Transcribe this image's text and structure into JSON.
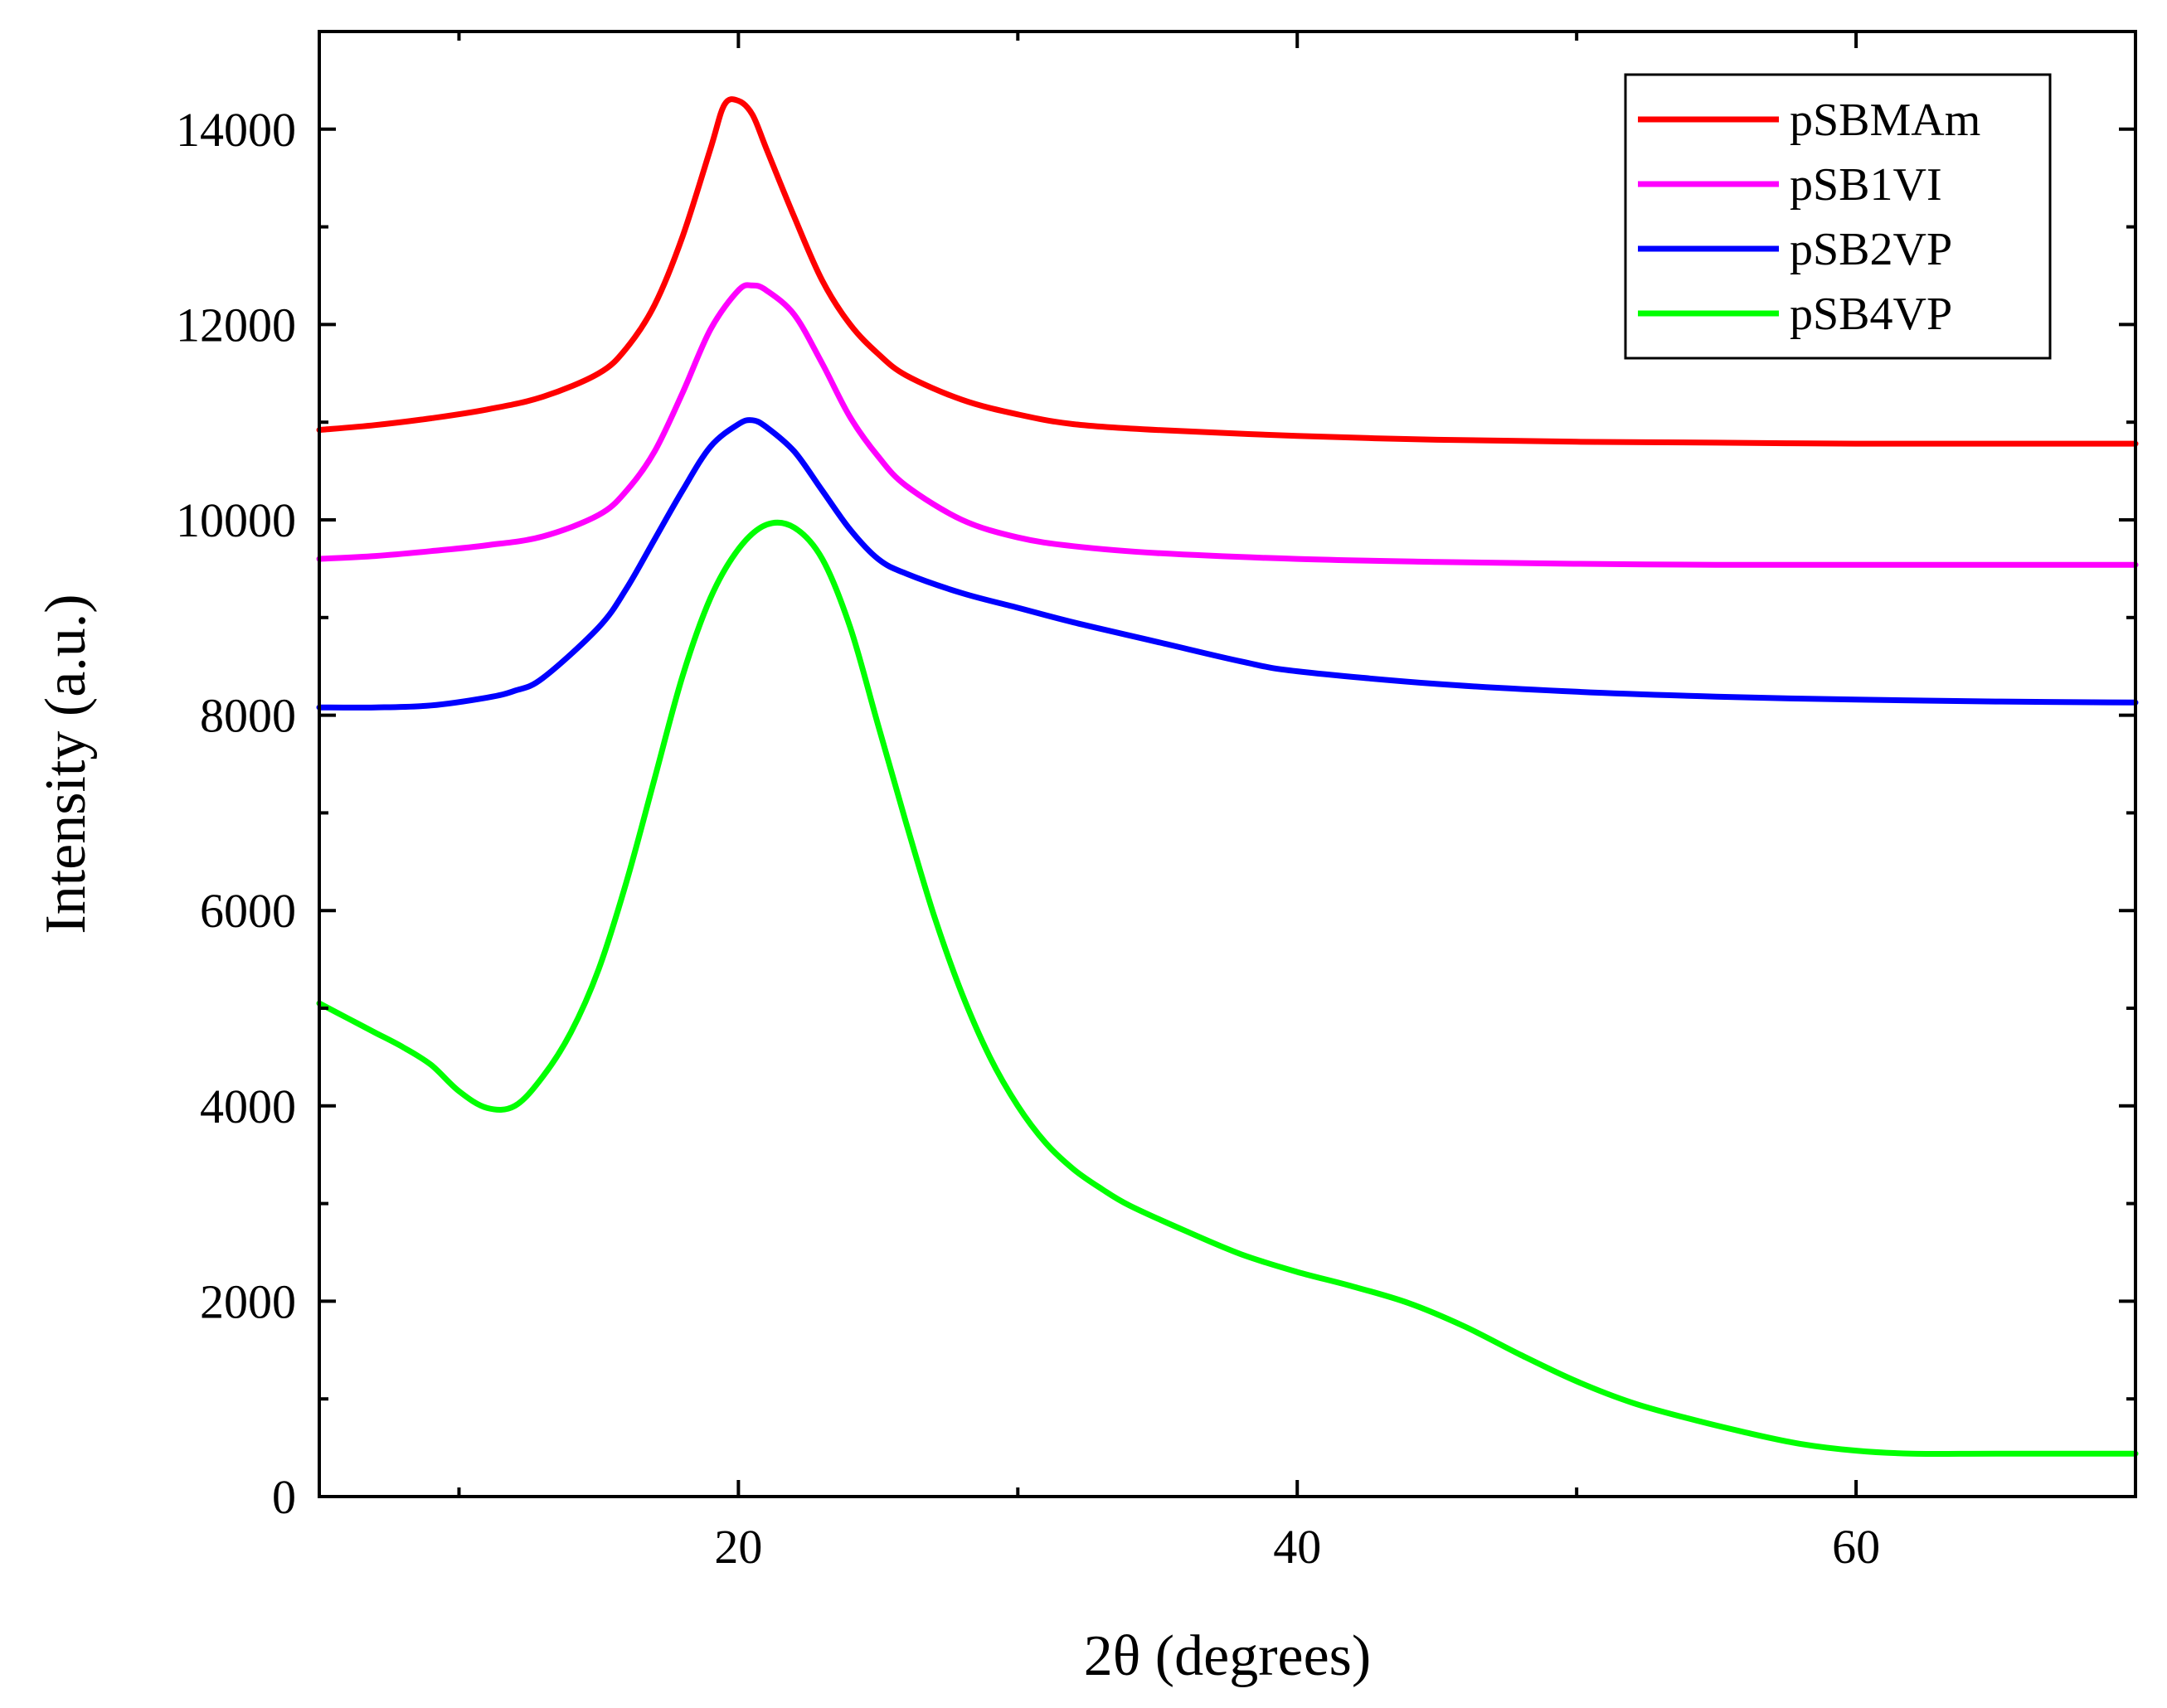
{
  "chart_data": {
    "type": "line",
    "title": "",
    "xlabel": "2θ (degrees)",
    "ylabel": "Intensity (a.u.)",
    "xlim": [
      5,
      70
    ],
    "ylim": [
      0,
      15000
    ],
    "x_ticks": [
      20,
      40,
      60
    ],
    "x_minor_ticks": [
      10,
      30,
      50,
      70
    ],
    "y_ticks": [
      0,
      2000,
      4000,
      6000,
      8000,
      10000,
      12000,
      14000
    ],
    "y_minor_ticks": [
      1000,
      3000,
      5000,
      7000,
      9000,
      11000,
      13000
    ],
    "legend_position": "top-right",
    "series": [
      {
        "name": "pSBMAm",
        "color": "#ff0000",
        "points": [
          [
            5,
            10920
          ],
          [
            7,
            10970
          ],
          [
            9,
            11040
          ],
          [
            11,
            11130
          ],
          [
            13,
            11260
          ],
          [
            15,
            11500
          ],
          [
            16,
            11760
          ],
          [
            17,
            12200
          ],
          [
            18,
            12900
          ],
          [
            19,
            13800
          ],
          [
            19.5,
            14250
          ],
          [
            20,
            14290
          ],
          [
            20.5,
            14150
          ],
          [
            21,
            13800
          ],
          [
            22,
            13100
          ],
          [
            23,
            12450
          ],
          [
            24,
            12000
          ],
          [
            25,
            11700
          ],
          [
            26,
            11480
          ],
          [
            28,
            11230
          ],
          [
            30,
            11080
          ],
          [
            32,
            10980
          ],
          [
            35,
            10920
          ],
          [
            40,
            10860
          ],
          [
            45,
            10820
          ],
          [
            50,
            10800
          ],
          [
            55,
            10790
          ],
          [
            60,
            10780
          ],
          [
            65,
            10780
          ],
          [
            70,
            10780
          ]
        ]
      },
      {
        "name": "pSB1VI",
        "color": "#ff00ff",
        "points": [
          [
            5,
            9600
          ],
          [
            7,
            9630
          ],
          [
            9,
            9680
          ],
          [
            11,
            9740
          ],
          [
            13,
            9830
          ],
          [
            15,
            10050
          ],
          [
            16,
            10300
          ],
          [
            17,
            10700
          ],
          [
            18,
            11300
          ],
          [
            19,
            11950
          ],
          [
            20,
            12350
          ],
          [
            20.5,
            12400
          ],
          [
            21,
            12350
          ],
          [
            22,
            12100
          ],
          [
            23,
            11600
          ],
          [
            24,
            11050
          ],
          [
            25,
            10650
          ],
          [
            26,
            10350
          ],
          [
            28,
            10000
          ],
          [
            30,
            9820
          ],
          [
            32,
            9730
          ],
          [
            35,
            9660
          ],
          [
            40,
            9600
          ],
          [
            45,
            9570
          ],
          [
            50,
            9550
          ],
          [
            55,
            9540
          ],
          [
            60,
            9540
          ],
          [
            65,
            9540
          ],
          [
            70,
            9540
          ]
        ]
      },
      {
        "name": "pSB2VP",
        "color": "#0000ff",
        "points": [
          [
            5,
            8080
          ],
          [
            7,
            8080
          ],
          [
            9,
            8100
          ],
          [
            11,
            8180
          ],
          [
            12,
            8250
          ],
          [
            13,
            8380
          ],
          [
            15,
            8900
          ],
          [
            16,
            9300
          ],
          [
            17,
            9800
          ],
          [
            18,
            10300
          ],
          [
            19,
            10750
          ],
          [
            20,
            10980
          ],
          [
            20.5,
            11020
          ],
          [
            21,
            10950
          ],
          [
            22,
            10700
          ],
          [
            23,
            10300
          ],
          [
            24,
            9900
          ],
          [
            25,
            9600
          ],
          [
            26,
            9450
          ],
          [
            28,
            9250
          ],
          [
            30,
            9100
          ],
          [
            32,
            8950
          ],
          [
            35,
            8750
          ],
          [
            38,
            8550
          ],
          [
            40,
            8450
          ],
          [
            45,
            8320
          ],
          [
            50,
            8240
          ],
          [
            55,
            8190
          ],
          [
            60,
            8160
          ],
          [
            65,
            8140
          ],
          [
            70,
            8130
          ]
        ]
      },
      {
        "name": "pSB4VP",
        "color": "#00ff00",
        "points": [
          [
            5,
            5050
          ],
          [
            6,
            4900
          ],
          [
            7,
            4750
          ],
          [
            8,
            4600
          ],
          [
            9,
            4420
          ],
          [
            10,
            4150
          ],
          [
            11,
            3980
          ],
          [
            12,
            4000
          ],
          [
            13,
            4300
          ],
          [
            14,
            4750
          ],
          [
            15,
            5400
          ],
          [
            16,
            6300
          ],
          [
            17,
            7350
          ],
          [
            18,
            8400
          ],
          [
            19,
            9200
          ],
          [
            20,
            9700
          ],
          [
            21,
            9950
          ],
          [
            22,
            9920
          ],
          [
            23,
            9600
          ],
          [
            24,
            8900
          ],
          [
            25,
            7900
          ],
          [
            26,
            6900
          ],
          [
            27,
            5950
          ],
          [
            28,
            5150
          ],
          [
            29,
            4500
          ],
          [
            30,
            4000
          ],
          [
            31,
            3620
          ],
          [
            32,
            3350
          ],
          [
            33,
            3150
          ],
          [
            34,
            2980
          ],
          [
            36,
            2720
          ],
          [
            38,
            2480
          ],
          [
            40,
            2300
          ],
          [
            42,
            2150
          ],
          [
            44,
            1980
          ],
          [
            46,
            1740
          ],
          [
            48,
            1450
          ],
          [
            50,
            1180
          ],
          [
            52,
            960
          ],
          [
            54,
            800
          ],
          [
            56,
            660
          ],
          [
            58,
            540
          ],
          [
            60,
            470
          ],
          [
            62,
            440
          ],
          [
            65,
            440
          ],
          [
            70,
            440
          ]
        ]
      }
    ]
  }
}
